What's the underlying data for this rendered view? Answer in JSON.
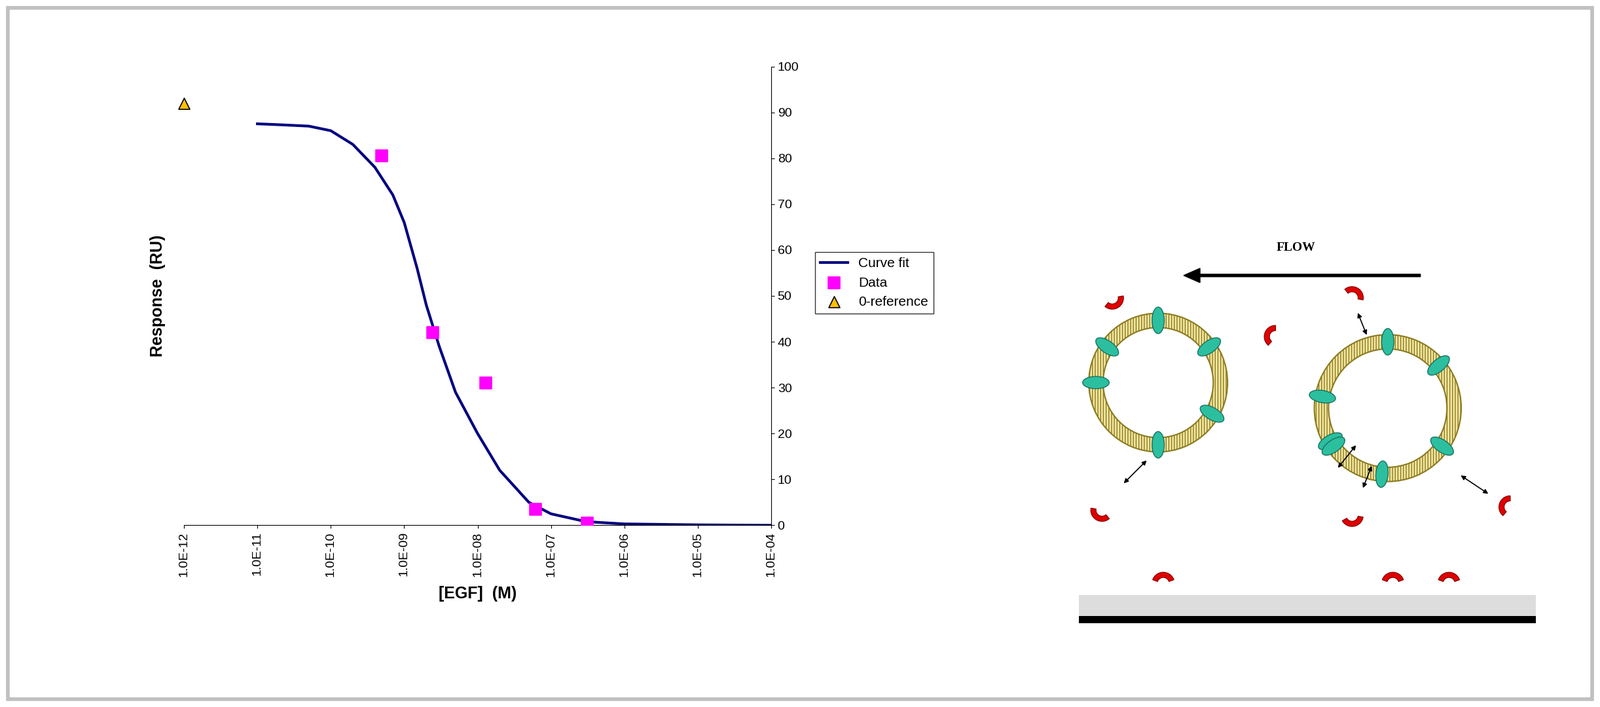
{
  "chart_data": {
    "type": "line",
    "x_label": "[EGF]  (M)",
    "y_label": "Response  (RU)",
    "log": "x",
    "legend": "center left",
    "xlim": [
      1e-12,
      0.0001
    ],
    "xticks": [
      {
        "value": 1e-12,
        "label": "1.0E-12"
      },
      {
        "value": 1e-11,
        "label": "1.0E-11"
      },
      {
        "value": 1e-10,
        "label": "1.0E-10"
      },
      {
        "value": 1e-09,
        "label": "1.0E-09"
      },
      {
        "value": 1e-08,
        "label": "1.0E-08"
      },
      {
        "value": 1e-07,
        "label": "1.0E-07"
      },
      {
        "value": 1e-06,
        "label": "1.0E-06"
      },
      {
        "value": 1e-05,
        "label": "1.0E-05"
      },
      {
        "value": 0.0001,
        "label": "1.0E-04"
      }
    ],
    "ylim": [
      0,
      100
    ],
    "yticks": [
      0,
      10,
      20,
      30,
      40,
      50,
      60,
      70,
      80,
      90,
      100
    ],
    "series": [
      {
        "name": "Curve fit",
        "type": "line",
        "color": "#000080",
        "line_style": "solid",
        "x": [
          1e-11,
          2e-11,
          5e-11,
          1e-10,
          2e-10,
          4e-10,
          7e-10,
          1e-09,
          1.5e-09,
          2e-09,
          3e-09,
          5e-09,
          1e-08,
          2e-08,
          5e-08,
          1e-07,
          3e-07,
          1e-06,
          1e-05,
          0.0001
        ],
        "values": [
          87.5,
          87.3,
          87.0,
          86.0,
          83.0,
          78.0,
          72.0,
          66.0,
          56.0,
          48.0,
          39.0,
          29.0,
          20.0,
          12.0,
          5.0,
          2.5,
          0.8,
          0.3,
          0.1,
          0.0
        ]
      },
      {
        "name": "Data",
        "type": "scatter",
        "color": "#FF00FF",
        "marker": "square",
        "x": [
          4.9e-10,
          2.45e-09,
          1.3e-08,
          6.2e-08,
          3.1e-07
        ],
        "values": [
          80.5,
          42.0,
          31.0,
          3.5,
          0.5
        ]
      },
      {
        "name": "0-reference",
        "type": "scatter",
        "color": "#FFC000",
        "marker": "triangle",
        "x": [
          1e-12
        ],
        "values": [
          92.0
        ]
      }
    ]
  },
  "diagram": {
    "flow_label": "FLOW"
  }
}
